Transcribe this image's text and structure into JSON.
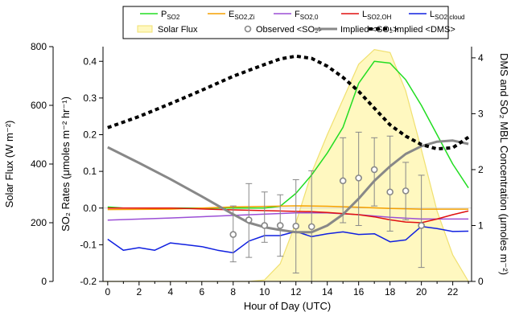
{
  "chart_data": {
    "type": "line",
    "xlabel": "Hour of Day (UTC)",
    "x_ticks": [
      0,
      2,
      4,
      6,
      8,
      10,
      12,
      14,
      16,
      18,
      20,
      22
    ],
    "xlim": [
      -0.3,
      23.2
    ],
    "axes": {
      "left_outer": {
        "label": "Solar Flux (W m⁻²)",
        "lim": [
          0,
          800
        ],
        "ticks": [
          0,
          200,
          400,
          600,
          800
        ]
      },
      "left_inner": {
        "label": "SO₂ Rates (μmoles m⁻² hr⁻¹)",
        "lim": [
          -0.2,
          0.44
        ],
        "ticks": [
          "-0.2",
          "-0.1",
          "0.0",
          "0.1",
          "0.2",
          "0.3",
          "0.4"
        ]
      },
      "right": {
        "label": "DMS and SO₂ MBL Concentration (μmoles m⁻²)",
        "lim": [
          0,
          4.2
        ],
        "ticks": [
          0,
          1,
          2,
          3,
          4
        ]
      }
    },
    "legend": {
      "placement": "top-center",
      "items": [
        {
          "name": "P",
          "sub": "SO2",
          "color": "#22dd22",
          "style": "line"
        },
        {
          "name": "E",
          "sub": "SO2,Zi",
          "color": "#f5a000",
          "style": "line"
        },
        {
          "name": "F",
          "sub": "SO2,0",
          "color": "#9b4fd6",
          "style": "line"
        },
        {
          "name": "L",
          "sub": "SO2,OH",
          "color": "#e01010",
          "style": "line"
        },
        {
          "name": "L",
          "sub": "SO2,cloud",
          "color": "#1020e0",
          "style": "line"
        },
        {
          "name": "Solar Flux",
          "sub": "",
          "color": "#fff8c0",
          "style": "fill"
        },
        {
          "name": "Observed <SO₂>",
          "sub": "",
          "color": "#888888",
          "style": "marker"
        },
        {
          "name": "Implied <SO₂>",
          "sub": "",
          "color": "#888888",
          "style": "thick"
        },
        {
          "name": "Implied <DMS>",
          "sub": "",
          "color": "#000000",
          "style": "dotted"
        }
      ]
    },
    "series": [
      {
        "key": "solar",
        "axis": "left_outer",
        "color": "#f0e070",
        "fill": "#fff8c0",
        "x": [
          -0.3,
          8,
          9,
          10,
          11,
          12,
          13,
          14,
          15,
          16,
          17,
          18,
          19,
          20,
          21,
          22,
          23
        ],
        "values": [
          0,
          0,
          0,
          5,
          60,
          200,
          370,
          500,
          620,
          740,
          790,
          780,
          650,
          450,
          240,
          90,
          0
        ]
      },
      {
        "key": "p_so2",
        "axis": "left_inner",
        "color": "#22dd22",
        "width": 1.5,
        "x": [
          0,
          1,
          2,
          3,
          4,
          5,
          6,
          7,
          8,
          9,
          10,
          11,
          12,
          13,
          14,
          15,
          16,
          17,
          18,
          19,
          20,
          21,
          22,
          23
        ],
        "values": [
          0.003,
          0.0,
          0.0,
          0.0,
          0.0,
          0.0,
          0.0,
          0.0,
          0.0,
          0.0,
          0.0,
          0.005,
          0.04,
          0.09,
          0.15,
          0.22,
          0.34,
          0.4,
          0.395,
          0.35,
          0.28,
          0.2,
          0.12,
          0.055
        ]
      },
      {
        "key": "e_so2",
        "axis": "left_inner",
        "color": "#f5a000",
        "width": 1.5,
        "x": [
          0,
          4,
          8,
          12,
          14,
          16,
          18,
          20,
          23
        ],
        "values": [
          -0.004,
          -0.003,
          0.003,
          0.006,
          0.005,
          0.002,
          -0.001,
          -0.003,
          -0.003
        ]
      },
      {
        "key": "f_so2",
        "axis": "left_inner",
        "color": "#9b4fd6",
        "width": 1.5,
        "x": [
          0,
          4,
          8,
          12,
          14,
          16,
          18,
          20,
          23
        ],
        "values": [
          -0.033,
          -0.027,
          -0.02,
          -0.013,
          -0.013,
          -0.018,
          -0.025,
          -0.03,
          -0.03
        ]
      },
      {
        "key": "l_oh",
        "axis": "left_inner",
        "color": "#e01010",
        "width": 1.5,
        "x": [
          0,
          4,
          8,
          12,
          13,
          14,
          15,
          16,
          17,
          18,
          19,
          20,
          21,
          22,
          23
        ],
        "values": [
          0.0,
          0.0,
          -0.005,
          -0.009,
          -0.01,
          -0.012,
          -0.015,
          -0.018,
          -0.024,
          -0.032,
          -0.038,
          -0.04,
          -0.03,
          -0.018,
          -0.008
        ]
      },
      {
        "key": "l_cloud",
        "axis": "left_inner",
        "color": "#1020e0",
        "width": 1.5,
        "x": [
          0,
          1,
          2,
          3,
          4,
          5,
          6,
          7,
          8,
          9,
          10,
          11,
          12,
          13,
          14,
          15,
          16,
          17,
          18,
          19,
          20,
          21,
          22,
          23
        ],
        "values": [
          -0.085,
          -0.115,
          -0.108,
          -0.115,
          -0.095,
          -0.1,
          -0.105,
          -0.115,
          -0.122,
          -0.09,
          -0.075,
          -0.075,
          -0.064,
          -0.078,
          -0.07,
          -0.065,
          -0.072,
          -0.07,
          -0.092,
          -0.087,
          -0.05,
          -0.056,
          -0.064,
          -0.063
        ]
      },
      {
        "key": "implied_so2",
        "axis": "right",
        "color": "#888888",
        "width": 3,
        "x": [
          0,
          2,
          4,
          6,
          8,
          9,
          10,
          11,
          12,
          13,
          14,
          15,
          16,
          17,
          18,
          19,
          20,
          21,
          22,
          23
        ],
        "values": [
          2.4,
          2.12,
          1.83,
          1.52,
          1.2,
          1.05,
          0.97,
          0.92,
          0.88,
          0.88,
          1.0,
          1.2,
          1.48,
          1.8,
          2.06,
          2.28,
          2.42,
          2.5,
          2.52,
          2.46
        ]
      },
      {
        "key": "implied_dms",
        "axis": "right",
        "color": "#000000",
        "width": 4,
        "dash": "5,4",
        "x": [
          0,
          2,
          4,
          6,
          8,
          10,
          11,
          12,
          13,
          14,
          15,
          16,
          17,
          18,
          19,
          20,
          21,
          22,
          23
        ],
        "values": [
          2.75,
          2.95,
          3.18,
          3.42,
          3.67,
          3.88,
          3.98,
          4.03,
          3.99,
          3.85,
          3.65,
          3.4,
          3.1,
          2.8,
          2.6,
          2.45,
          2.37,
          2.39,
          2.58
        ]
      }
    ],
    "observed": {
      "axis": "right",
      "color": "#888888",
      "x": [
        8,
        9,
        10,
        11,
        12,
        13,
        15,
        16,
        17,
        18,
        19,
        20
      ],
      "values": [
        0.84,
        1.1,
        1.0,
        1.0,
        0.99,
        0.98,
        1.8,
        1.85,
        2.0,
        1.6,
        1.62,
        1.0
      ],
      "err_low": [
        0.35,
        0.43,
        0.7,
        0.45,
        0.15,
        0.0,
        1.05,
        1.0,
        1.35,
        0.9,
        1.1,
        0.25
      ],
      "err_high": [
        1.35,
        1.75,
        1.6,
        1.55,
        1.82,
        1.98,
        2.57,
        2.67,
        2.57,
        2.6,
        2.13,
        1.9
      ]
    }
  }
}
